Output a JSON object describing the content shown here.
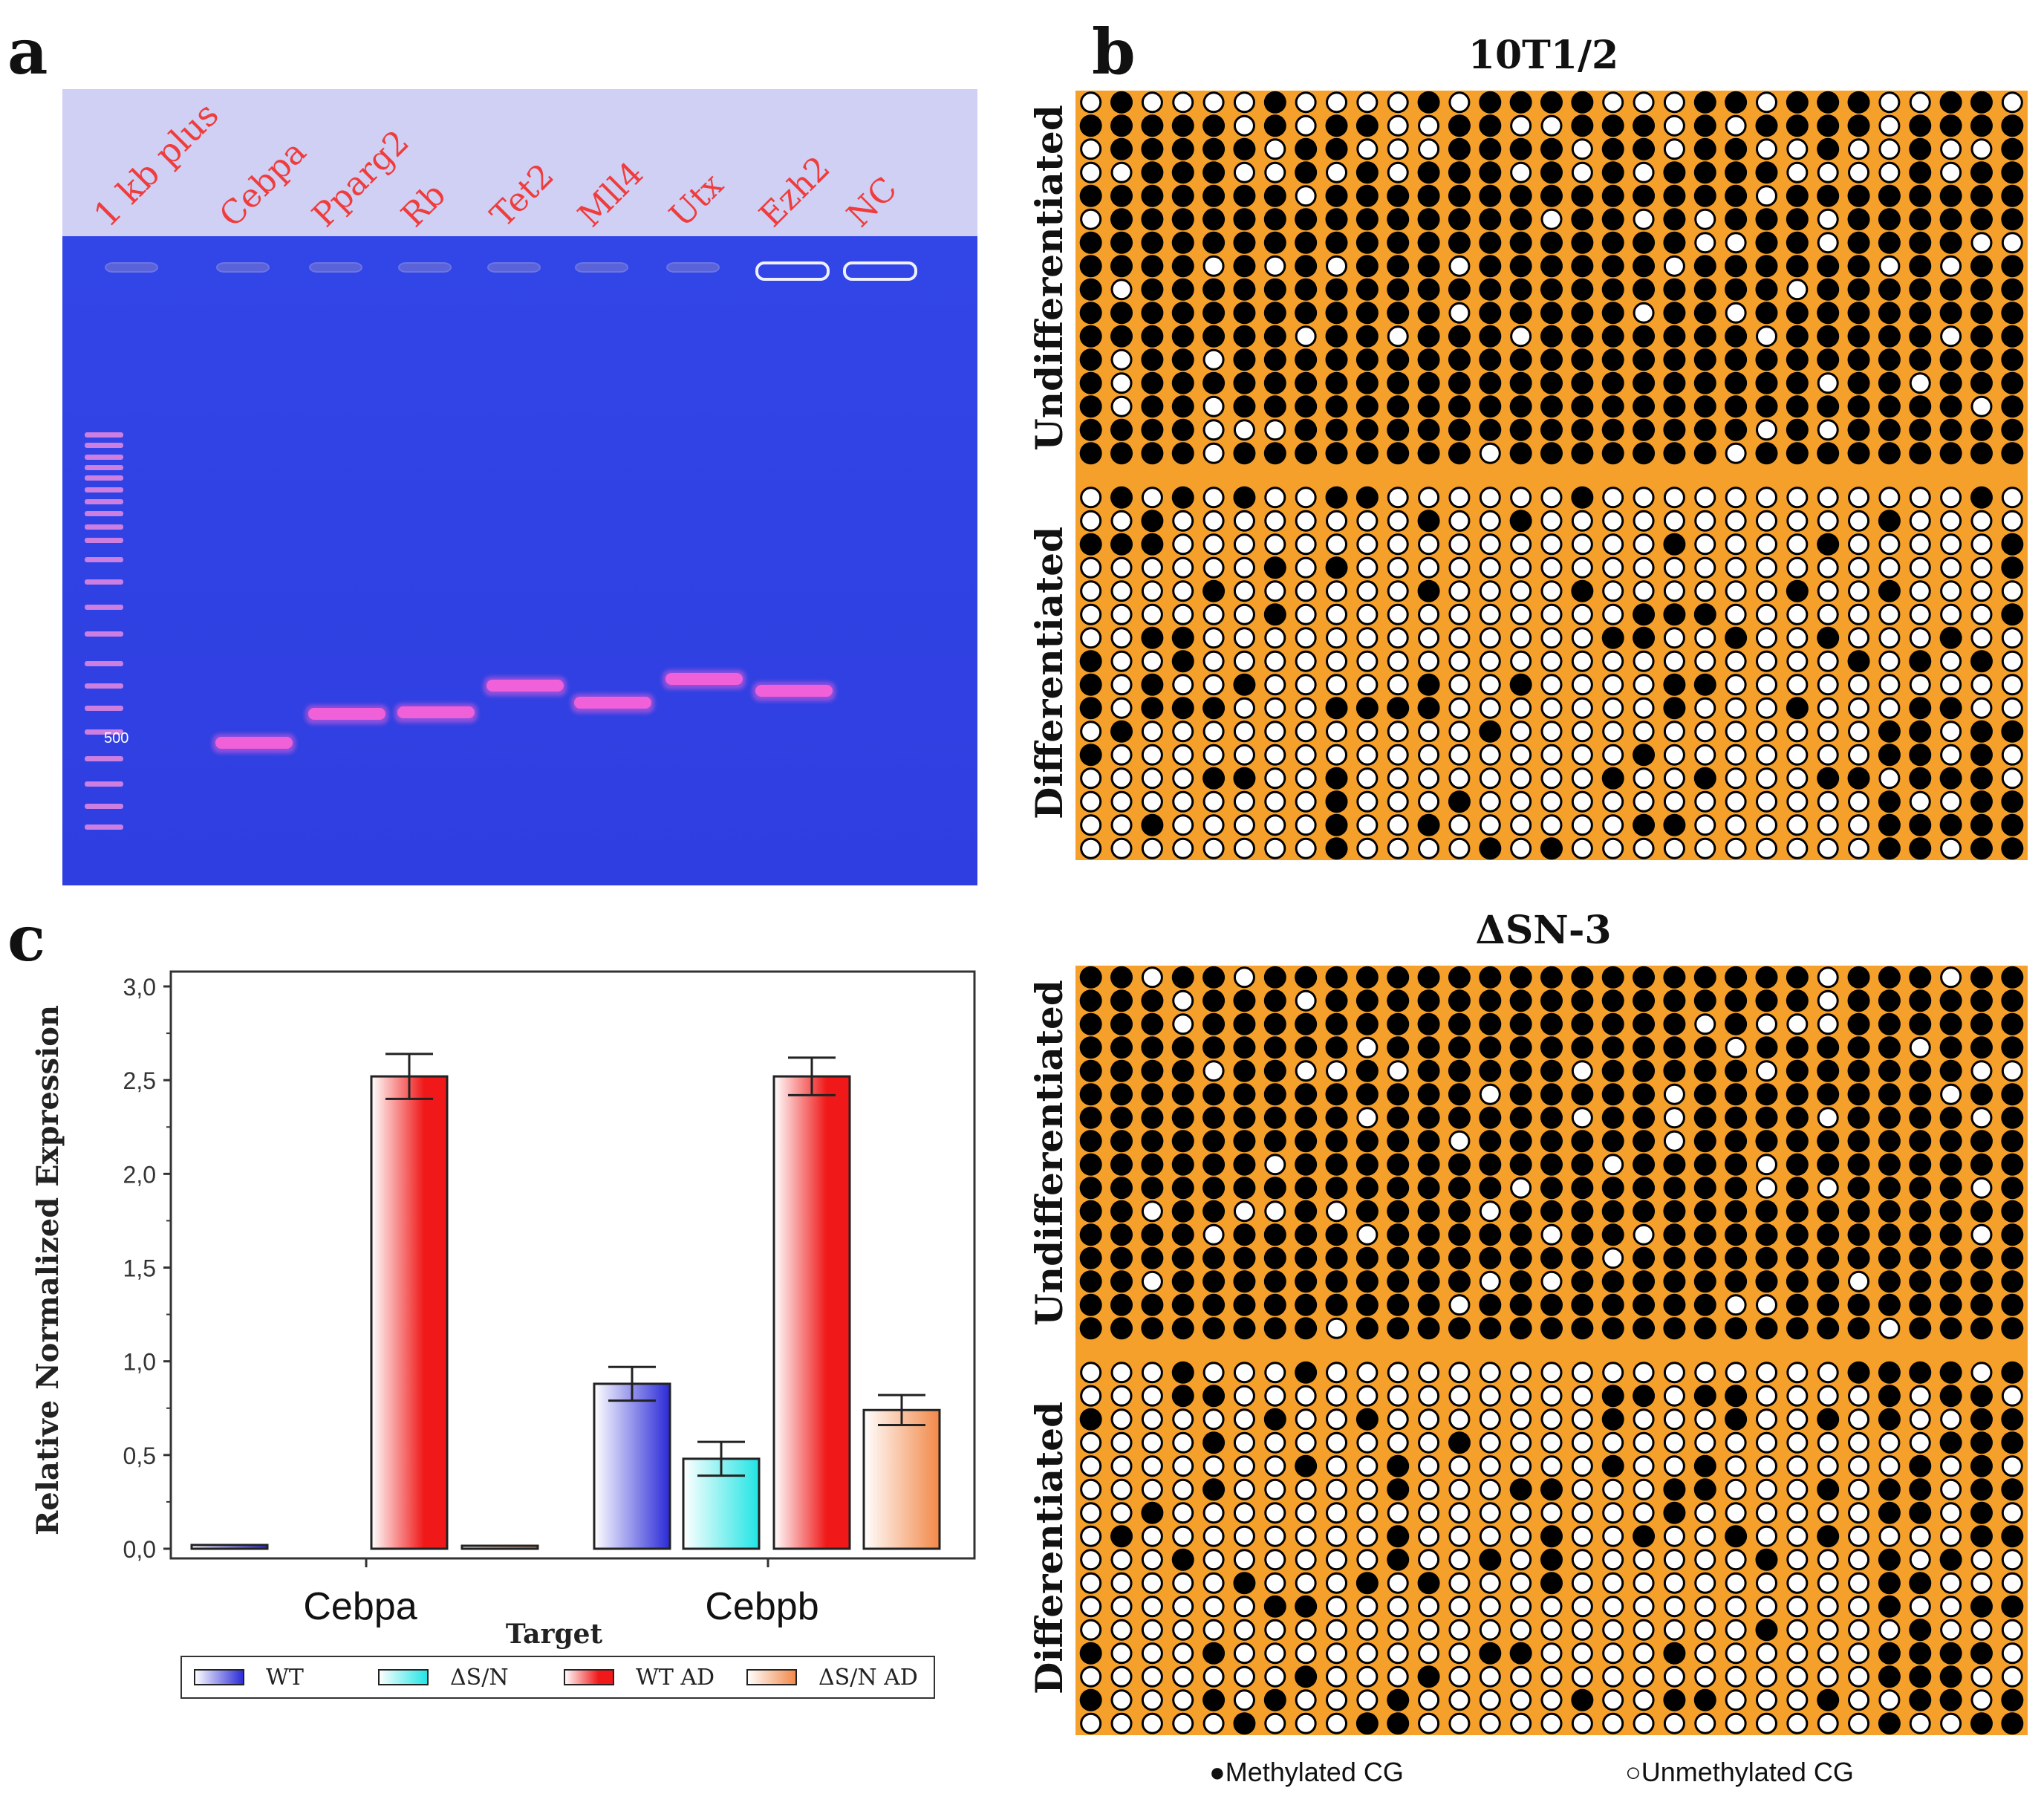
{
  "panel_labels": {
    "a": "a",
    "b": "b",
    "c": "c"
  },
  "gel": {
    "ladder_label": "1 kb plus",
    "lane_labels": [
      "Cebpa",
      "Pparg2",
      "Rb",
      "Tet2",
      "Mll4",
      "Utx",
      "Ezh2",
      "NC"
    ],
    "marker_label": "500",
    "colors": {
      "background": "#3a4ef0",
      "header": "#cfd0f4",
      "label": "#f03c3c",
      "band": "#f060d8"
    }
  },
  "methylation": {
    "blocks": [
      {
        "title": "10T1/2",
        "top_label": "Undifferentiated",
        "bottom_label": "Differentiated"
      },
      {
        "title": "ΔSN-3",
        "top_label": "Undifferentiated",
        "bottom_label": "Differentiated"
      }
    ],
    "legend_methylated": "●Methylated CG",
    "legend_unmethylated": "○Unmethylated CG",
    "grid_columns": 31,
    "grid_rows_per_group": 16,
    "colors": {
      "background": "#f5a02a",
      "methylated": "#000000",
      "unmethylated": "#ffffff"
    }
  },
  "chart_data": {
    "type": "bar",
    "ylabel": "Relative Normalized Expression",
    "xlabel": "Target",
    "yticks": [
      "0,0",
      "0,5",
      "1,0",
      "1,5",
      "2,0",
      "2,5",
      "3,0"
    ],
    "ylim": [
      0,
      3.0
    ],
    "categories": [
      "Cebpa",
      "Cebpb"
    ],
    "series": [
      {
        "name": "WT",
        "values": [
          0.02,
          0.88
        ],
        "errors": [
          0.01,
          0.09
        ],
        "color": "#2a2ad8"
      },
      {
        "name": "ΔS/N",
        "values": [
          null,
          0.48
        ],
        "errors": [
          null,
          0.09
        ],
        "color": "#22e4e4"
      },
      {
        "name": "WT AD",
        "values": [
          2.52,
          2.52
        ],
        "errors": [
          0.12,
          0.1
        ],
        "color": "#f01818"
      },
      {
        "name": "ΔS/N AD",
        "values": [
          0.01,
          0.74
        ],
        "errors": [
          0.01,
          0.08
        ],
        "color": "#f28848"
      }
    ],
    "legend": [
      "WT",
      "ΔS/N",
      "WT AD",
      "ΔS/N AD"
    ]
  }
}
